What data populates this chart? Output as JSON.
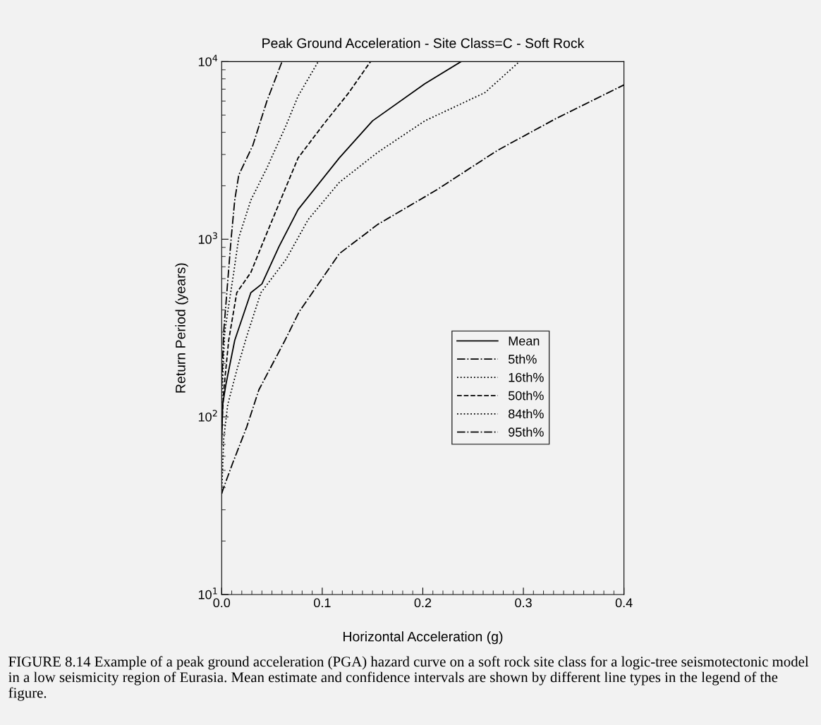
{
  "chart_data": {
    "type": "line",
    "title": "Peak Ground Acceleration - Site Class=C - Soft Rock",
    "xlabel": "Horizontal Acceleration (g)",
    "ylabel": "Return Period (years)",
    "log": "y",
    "xlim": [
      0.0,
      0.4
    ],
    "xticks": [
      {
        "value": 0.0,
        "label": "0.0"
      },
      0.1,
      0.2,
      0.3,
      0.4
    ],
    "ylim": [
      10,
      10000
    ],
    "yticks": [
      {
        "value": 10,
        "label": "10$^{1}$"
      },
      {
        "value": 100,
        "label": "10$^{2}$"
      },
      {
        "value": 1000,
        "label": "10$^{3}$"
      },
      {
        "value": 10000,
        "label": "10$^{4}$"
      }
    ],
    "grid": false,
    "legend": "lower right",
    "marker": "none",
    "annotations": [
      "FIGURE 8.14 Example of a peak ground acceleration (PGA) hazard curve on a soft rock site class for a logic-tree seismotectonic model in a low seismicity region of Eurasia. Mean estimate and confidence intervals are shown by different line types in the legend of the figure."
    ],
    "series": [
      {
        "name": "Mean",
        "color": "#000000",
        "line_style": "solid",
        "x": [
          0.0,
          0.001,
          0.004,
          0.013,
          0.029,
          0.04,
          0.057,
          0.076,
          0.117,
          0.15,
          0.202,
          0.238
        ],
        "values": [
          70,
          117,
          150,
          270,
          500,
          560,
          910,
          1470,
          2870,
          4640,
          7500,
          10000
        ]
      },
      {
        "name": "5th%",
        "color": "#000000",
        "line_style": "dashdot",
        "x": [
          0.0,
          0.002,
          0.007,
          0.0095,
          0.013,
          0.017,
          0.031,
          0.045,
          0.06
        ],
        "values": [
          150,
          300,
          680,
          1020,
          1660,
          2300,
          3380,
          6000,
          10000
        ]
      },
      {
        "name": "16th%",
        "color": "#000000",
        "line_style": "dotted",
        "x": [
          0.0,
          0.003,
          0.012,
          0.017,
          0.029,
          0.045,
          0.064,
          0.076,
          0.096
        ],
        "values": [
          120,
          300,
          650,
          1020,
          1660,
          2520,
          4370,
          6400,
          10000
        ]
      },
      {
        "name": "50th%",
        "color": "#000000",
        "line_style": "dashed",
        "x": [
          0.0,
          0.002,
          0.007,
          0.015,
          0.029,
          0.043,
          0.06,
          0.076,
          0.102,
          0.126,
          0.148
        ],
        "values": [
          85,
          140,
          270,
          500,
          650,
          1020,
          1740,
          2870,
          4490,
          6640,
          10000
        ]
      },
      {
        "name": "84th%",
        "color": "#000000",
        "line_style": "dotted",
        "x": [
          0.0,
          0.002,
          0.006,
          0.015,
          0.025,
          0.039,
          0.064,
          0.086,
          0.117,
          0.155,
          0.202,
          0.262,
          0.296
        ],
        "values": [
          37,
          75,
          117,
          183,
          285,
          500,
          770,
          1290,
          2090,
          3080,
          4640,
          6700,
          10000
        ]
      },
      {
        "name": "95th%",
        "color": "#000000",
        "line_style": "dashdot",
        "x": [
          0.0,
          0.002,
          0.011,
          0.025,
          0.037,
          0.063,
          0.077,
          0.117,
          0.155,
          0.214,
          0.274,
          0.333,
          0.4
        ],
        "values": [
          37,
          40,
          55,
          88,
          142,
          270,
          390,
          830,
          1210,
          1900,
          3160,
          4800,
          7400
        ]
      }
    ]
  }
}
